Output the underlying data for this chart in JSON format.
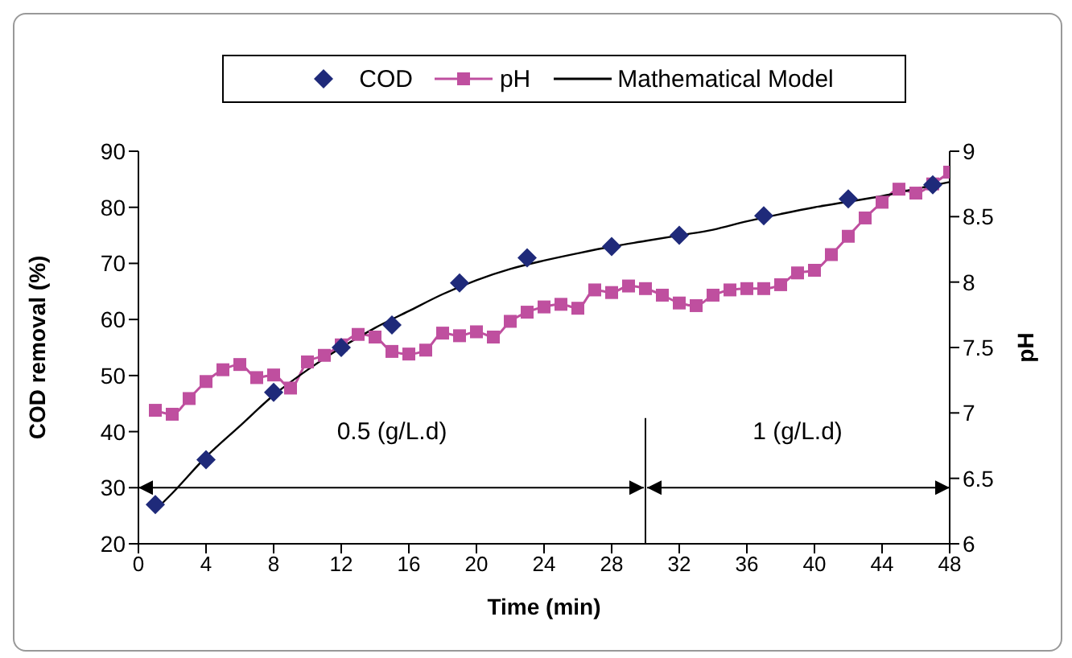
{
  "chart_data": {
    "type": "scatter",
    "xlabel": "Time (min)",
    "ylabel": "COD removal (%)",
    "y2label": "pH",
    "xlim": [
      0,
      48
    ],
    "xticks": [
      0,
      4,
      8,
      12,
      16,
      20,
      24,
      28,
      32,
      36,
      40,
      44,
      48
    ],
    "ylim": [
      20,
      90
    ],
    "yticks": [
      20,
      30,
      40,
      50,
      60,
      70,
      80,
      90
    ],
    "y2lim": [
      6,
      9
    ],
    "y2ticks": [
      6,
      6.5,
      7,
      7.5,
      8,
      8.5,
      9
    ],
    "legend": "top",
    "ref_lines": [
      {
        "axis": "x",
        "value": 30,
        "color": "#000000"
      }
    ],
    "annotations": [
      "0.5 (g/L.d)",
      "1 (g/L.d)"
    ],
    "series": [
      {
        "name": "COD",
        "marker": "diamond",
        "color": "#1f2a7a",
        "x": [
          1,
          4,
          8,
          12,
          15,
          19,
          23,
          28,
          32,
          37,
          42,
          47
        ],
        "values": [
          27,
          35,
          47,
          55,
          59,
          66.5,
          71,
          73,
          75,
          78.5,
          81.5,
          84
        ]
      },
      {
        "name": "pH",
        "type": "line",
        "axis": "y2",
        "marker": "square",
        "color": "#bf4f9f",
        "x": [
          1,
          2,
          3,
          4,
          5,
          6,
          7,
          8,
          9,
          10,
          11,
          12,
          13,
          14,
          15,
          16,
          17,
          18,
          19,
          20,
          21,
          22,
          23,
          24,
          25,
          26,
          27,
          28,
          29,
          30,
          31,
          32,
          33,
          34,
          35,
          36,
          37,
          38,
          39,
          40,
          41,
          42,
          43,
          44,
          45,
          46,
          47,
          48
        ],
        "values": [
          7.02,
          6.99,
          7.11,
          7.24,
          7.33,
          7.37,
          7.27,
          7.29,
          7.19,
          7.39,
          7.44,
          7.52,
          7.6,
          7.58,
          7.47,
          7.45,
          7.48,
          7.61,
          7.59,
          7.62,
          7.58,
          7.7,
          7.77,
          7.81,
          7.83,
          7.8,
          7.94,
          7.92,
          7.97,
          7.95,
          7.9,
          7.84,
          7.82,
          7.9,
          7.94,
          7.95,
          7.95,
          7.98,
          8.07,
          8.09,
          8.21,
          8.35,
          8.49,
          8.61,
          8.71,
          8.68,
          8.75,
          8.84
        ]
      },
      {
        "name": "Mathematical Model",
        "type": "line",
        "marker": "none",
        "color": "#000000",
        "x": [
          1,
          2,
          4,
          6,
          8,
          10,
          12,
          14,
          16,
          18,
          20,
          22,
          24,
          26,
          28,
          30,
          32,
          34,
          36,
          38,
          40,
          42,
          44,
          46,
          48
        ],
        "values": [
          26,
          29,
          35.5,
          41,
          46.5,
          51,
          55,
          58.5,
          61.5,
          64.5,
          67,
          69,
          70.5,
          71.8,
          73,
          74,
          75,
          76,
          77.5,
          78.8,
          80,
          81,
          82,
          83.3,
          84.5
        ]
      }
    ]
  }
}
